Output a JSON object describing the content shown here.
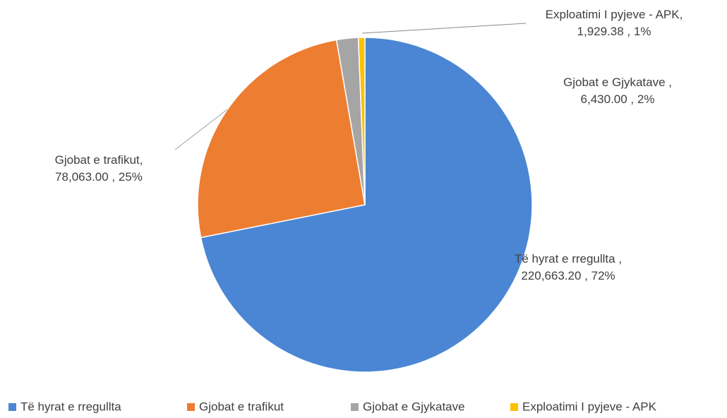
{
  "chart_data": {
    "type": "pie",
    "categories": [
      "Të hyrat e rregullta",
      "Gjobat e trafikut",
      "Gjobat e Gjykatave",
      "Exploatimi I pyjeve - APK"
    ],
    "values": [
      220663.2,
      78063.0,
      6430.0,
      1929.38
    ],
    "value_labels": [
      "Të hyrat e rregullta ,\n220,663.20 , 72%",
      "Gjobat e trafikut,\n78,063.00 , 25%",
      "Gjobat e Gjykatave ,\n6,430.00 , 2%",
      "Exploatimi I pyjeve - APK,\n1,929.38 , 1%"
    ],
    "colors": [
      "#4a86d3",
      "#ed7d31",
      "#a5a5a5",
      "#ffc000"
    ],
    "legend": "bottom"
  }
}
